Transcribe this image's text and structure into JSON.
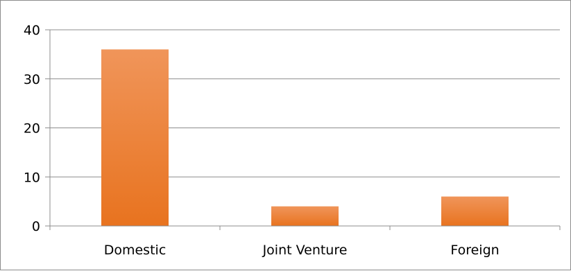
{
  "chart_data": {
    "type": "bar",
    "categories": [
      "Domestic",
      "Joint Venture",
      "Foreign"
    ],
    "values": [
      36,
      4,
      6
    ],
    "title": "",
    "xlabel": "",
    "ylabel": "",
    "ylim": [
      0,
      40
    ],
    "yticks": [
      0,
      10,
      20,
      30,
      40
    ],
    "grid": true,
    "legend": "none",
    "colors": {
      "bar_top": "#f0955a",
      "bar_bottom": "#e8731f",
      "grid": "#8c8c8c",
      "axis": "#8c8c8c"
    }
  }
}
